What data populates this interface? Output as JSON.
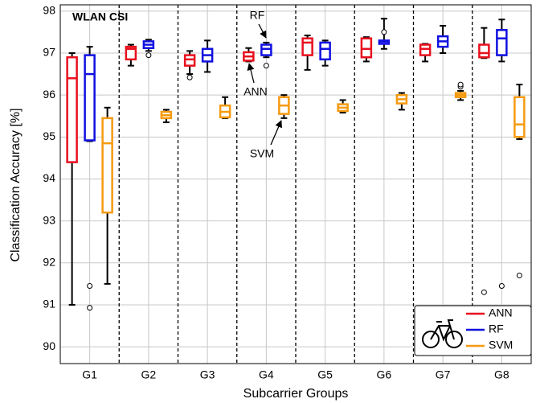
{
  "chart_data": {
    "type": "box",
    "annotation": "WLAN CSI",
    "arrow_labels": [
      "RF",
      "ANN",
      "SVM"
    ],
    "x_label": "Subcarrier Groups",
    "y_label": "Classification Accuracy [%]",
    "categories": [
      "G1",
      "G2",
      "G3",
      "G4",
      "G5",
      "G6",
      "G7",
      "G8"
    ],
    "ylim": [
      89.6,
      98.15
    ],
    "yticks": [
      90,
      91,
      92,
      93,
      94,
      95,
      96,
      97,
      98
    ],
    "grid": true,
    "legend": "lower right",
    "series": [
      {
        "name": "ANN",
        "color": "#e8101e",
        "boxes": [
          {
            "low": 91.0,
            "q1": 94.4,
            "median": 96.4,
            "q3": 96.9,
            "high": 97.0,
            "outliers": []
          },
          {
            "low": 96.7,
            "q1": 96.85,
            "median": 97.1,
            "q3": 97.15,
            "high": 97.2,
            "outliers": []
          },
          {
            "low": 96.5,
            "q1": 96.7,
            "median": 96.85,
            "q3": 96.95,
            "high": 97.05,
            "outliers": [
              96.42
            ]
          },
          {
            "low": 96.8,
            "q1": 96.82,
            "median": 96.92,
            "q3": 97.02,
            "high": 97.12,
            "outliers": []
          },
          {
            "low": 96.6,
            "q1": 96.95,
            "median": 97.25,
            "q3": 97.35,
            "high": 97.42,
            "outliers": []
          },
          {
            "low": 96.8,
            "q1": 96.9,
            "median": 97.1,
            "q3": 97.35,
            "high": 97.38,
            "outliers": []
          },
          {
            "low": 96.8,
            "q1": 96.95,
            "median": 97.1,
            "q3": 97.2,
            "high": 97.22,
            "outliers": []
          },
          {
            "low": 96.88,
            "q1": 96.9,
            "median": 97.0,
            "q3": 97.2,
            "high": 97.6,
            "outliers": [
              91.3
            ]
          }
        ]
      },
      {
        "name": "RF",
        "color": "#1010e0",
        "boxes": [
          {
            "low": 94.9,
            "q1": 94.92,
            "median": 96.5,
            "q3": 96.95,
            "high": 97.15,
            "outliers": [
              91.45,
              90.93
            ]
          },
          {
            "low": 97.05,
            "q1": 97.12,
            "median": 97.2,
            "q3": 97.28,
            "high": 97.32,
            "outliers": [
              96.95
            ]
          },
          {
            "low": 96.55,
            "q1": 96.8,
            "median": 96.95,
            "q3": 97.1,
            "high": 97.3,
            "outliers": []
          },
          {
            "low": 96.9,
            "q1": 96.95,
            "median": 97.1,
            "q3": 97.2,
            "high": 97.25,
            "outliers": [
              96.7
            ]
          },
          {
            "low": 96.7,
            "q1": 96.85,
            "median": 97.1,
            "q3": 97.25,
            "high": 97.3,
            "outliers": []
          },
          {
            "low": 97.1,
            "q1": 97.22,
            "median": 97.27,
            "q3": 97.3,
            "high": 97.82,
            "outliers": [
              97.5
            ]
          },
          {
            "low": 97.0,
            "q1": 97.15,
            "median": 97.28,
            "q3": 97.4,
            "high": 97.65,
            "outliers": []
          },
          {
            "low": 96.8,
            "q1": 96.95,
            "median": 97.35,
            "q3": 97.55,
            "high": 97.8,
            "outliers": [
              91.45
            ]
          }
        ]
      },
      {
        "name": "SVM",
        "color": "#f59a10",
        "boxes": [
          {
            "low": 91.5,
            "q1": 93.2,
            "median": 94.85,
            "q3": 95.45,
            "high": 95.7,
            "outliers": []
          },
          {
            "low": 95.35,
            "q1": 95.45,
            "median": 95.52,
            "q3": 95.6,
            "high": 95.65,
            "outliers": []
          },
          {
            "low": 95.45,
            "q1": 95.47,
            "median": 95.6,
            "q3": 95.75,
            "high": 95.95,
            "outliers": []
          },
          {
            "low": 95.45,
            "q1": 95.55,
            "median": 95.75,
            "q3": 95.95,
            "high": 96.0,
            "outliers": []
          },
          {
            "low": 95.58,
            "q1": 95.62,
            "median": 95.7,
            "q3": 95.78,
            "high": 95.88,
            "outliers": []
          },
          {
            "low": 95.65,
            "q1": 95.8,
            "median": 95.9,
            "q3": 96.0,
            "high": 96.05,
            "outliers": []
          },
          {
            "low": 95.88,
            "q1": 95.95,
            "median": 96.0,
            "q3": 96.05,
            "high": 96.1,
            "outliers": [
              96.2,
              96.25
            ]
          },
          {
            "low": 94.95,
            "q1": 95.0,
            "median": 95.3,
            "q3": 95.95,
            "high": 96.25,
            "outliers": [
              91.7
            ]
          }
        ]
      }
    ]
  }
}
